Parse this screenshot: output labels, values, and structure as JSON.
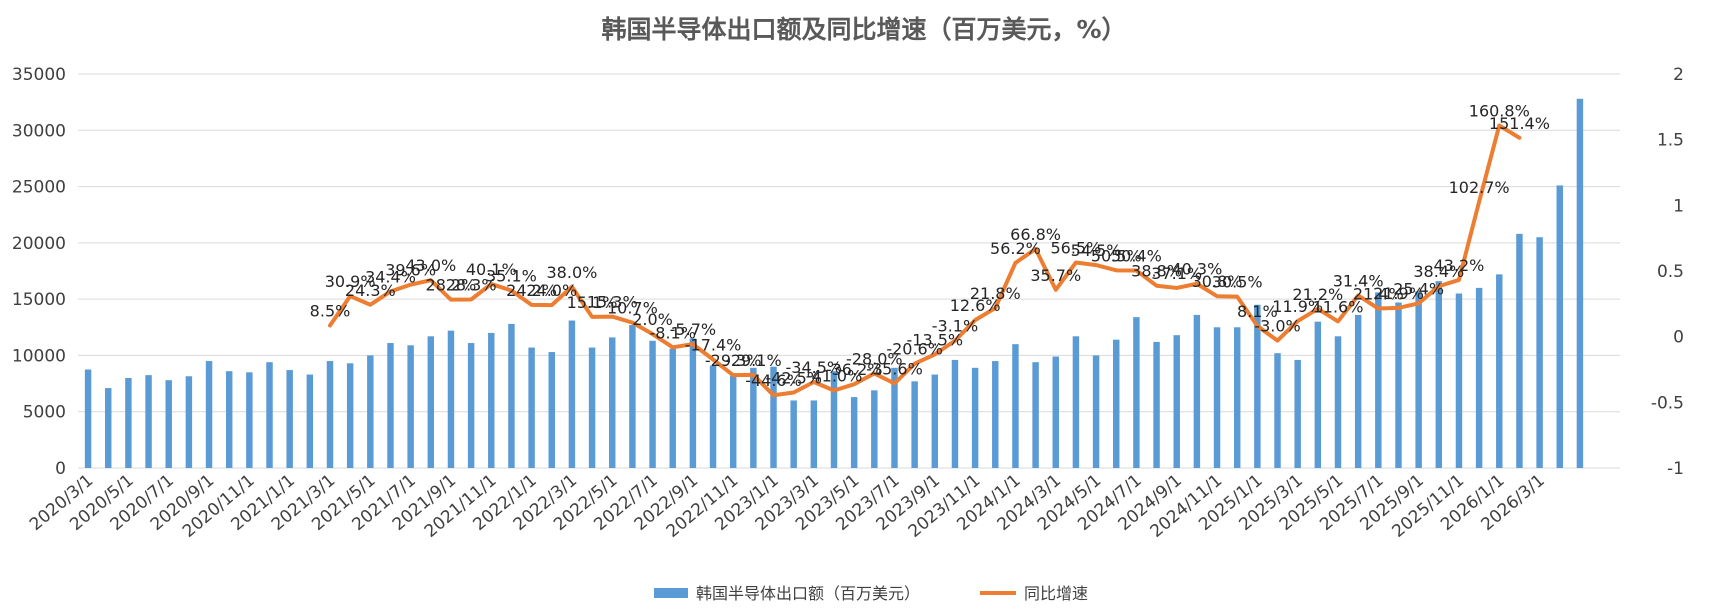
{
  "chart_data": {
    "type": "bar+line",
    "title": "韩国半导体出口额及同比增速（百万美元，%）",
    "x_tick_labels": [
      "2020/3/1",
      "2020/5/1",
      "2020/7/1",
      "2020/9/1",
      "2020/11/1",
      "2021/1/1",
      "2021/3/1",
      "2021/5/1",
      "2021/7/1",
      "2021/9/1",
      "2021/11/1",
      "2022/1/1",
      "2022/3/1",
      "2022/5/1",
      "2022/7/1",
      "2022/9/1",
      "2022/11/1",
      "2023/1/1",
      "2023/3/1",
      "2023/5/1",
      "2023/7/1",
      "2023/9/1",
      "2023/11/1",
      "2024/1/1",
      "2024/3/1",
      "2024/5/1",
      "2024/7/1",
      "2024/9/1",
      "2024/11/1",
      "2025/1/1",
      "2025/3/1",
      "2025/5/1",
      "2025/7/1",
      "2025/9/1",
      "2025/11/1",
      "2026/1/1",
      "2026/3/1"
    ],
    "y_left": {
      "min": 0,
      "max": 35000,
      "ticks": [
        "0",
        "5000",
        "10000",
        "15000",
        "20000",
        "25000",
        "30000",
        "35000"
      ]
    },
    "y_right": {
      "min": -1,
      "max": 2,
      "ticks": [
        "-1",
        "-0.5",
        "0",
        "0.5",
        "1",
        "1.5",
        "2"
      ]
    },
    "series": [
      {
        "name": "韩国半导体出口额（百万美元）",
        "type": "bar",
        "axis": "left",
        "color": "#5b9bd5",
        "values": [
          8750,
          7100,
          8000,
          8250,
          7800,
          8150,
          9500,
          8600,
          8500,
          9400,
          8700,
          8300,
          9500,
          9300,
          10000,
          11100,
          10900,
          11700,
          12200,
          11100,
          12000,
          12800,
          10700,
          10300,
          13100,
          10700,
          11600,
          12700,
          11300,
          10600,
          11500,
          9100,
          8200,
          8900,
          9000,
          6000,
          6000,
          8600,
          6300,
          6900,
          8900,
          7700,
          8300,
          9600,
          8900,
          9500,
          11000,
          9400,
          9900,
          11700,
          10000,
          11400,
          13400,
          11200,
          11800,
          13600,
          12500,
          12500,
          14500,
          10200,
          9600,
          13000,
          11700,
          13600,
          15600,
          14700,
          15700,
          16600,
          15500,
          16000,
          17200,
          20800,
          20500,
          25100,
          32800
        ]
      },
      {
        "name": "同比增速",
        "type": "line",
        "axis": "right",
        "color": "#ed7d31",
        "start_index": 12,
        "values": [
          0.085,
          0.309,
          0.243,
          0.344,
          0.396,
          0.43,
          0.282,
          0.283,
          0.401,
          0.351,
          0.242,
          0.24,
          0.38,
          0.151,
          0.153,
          0.107,
          0.02,
          -0.081,
          -0.057,
          -0.174,
          -0.293,
          -0.291,
          -0.446,
          -0.425,
          -0.345,
          -0.41,
          -0.362,
          -0.28,
          -0.356,
          -0.206,
          -0.135,
          -0.031,
          0.126,
          0.218,
          0.562,
          0.668,
          0.357,
          0.565,
          0.545,
          0.505,
          0.504,
          0.388,
          0.371,
          0.403,
          0.308,
          0.305,
          0.081,
          -0.03,
          0.119,
          0.212,
          0.116,
          0.314,
          0.214,
          0.219,
          0.254,
          0.384,
          0.432,
          1.027,
          1.608,
          1.514
        ],
        "labels": [
          "8.5%",
          "30.9%",
          "24.3%",
          "34.4%",
          "39.6%",
          "43.0%",
          "28.2%",
          "28.3%",
          "40.1%",
          "35.1%",
          "24.2%",
          "24.0%",
          "38.0%",
          "15.1%",
          "15.3%",
          "10.7%",
          "2.0%",
          "-8.1%",
          "-5.7%",
          "-17.4%",
          "-29.3%",
          "-29.1%",
          "-44.6%",
          "-42.5%",
          "-34.5%",
          "-41.0%",
          "-36.2%",
          "-28.0%",
          "-35.6%",
          "-20.6%",
          "-13.5%",
          "-3.1%",
          "12.6%",
          "21.8%",
          "56.2%",
          "66.8%",
          "35.7%",
          "56.5%",
          "54.5%",
          "50.5%",
          "50.4%",
          "38.8%",
          "37.1%",
          "40.3%",
          "30.8%",
          "30.5%",
          "8.1%",
          "-3.0%",
          "11.9%",
          "21.2%",
          "11.6%",
          "31.4%",
          "21.4%",
          "21.9%",
          "25.4%",
          "38.4%",
          "43.2%",
          "102.7%",
          "160.8%",
          "151.4%"
        ]
      }
    ],
    "legend": {
      "position": "bottom",
      "entries": [
        "韩国半导体出口额（百万美元）",
        "同比增速"
      ]
    }
  }
}
